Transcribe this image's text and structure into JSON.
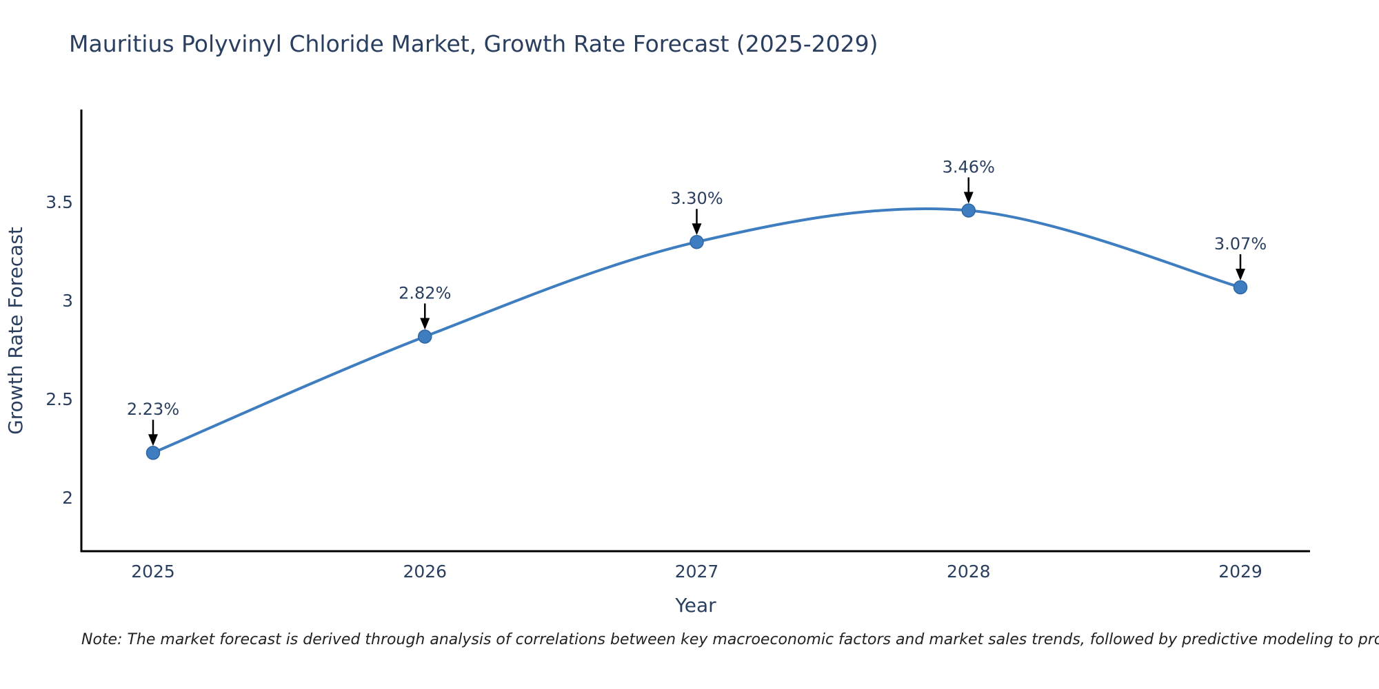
{
  "title": "Mauritius Polyvinyl Chloride Market, Growth Rate Forecast (2025-2029)",
  "note": "Note: The market forecast is derived through analysis of correlations between key macroeconomic factors and market sales trends, followed by predictive modeling to project future sales",
  "colors": {
    "line": "#3E7DBF",
    "marker_fill": "#3E7DBF",
    "marker_edge": "#2F66A3",
    "axis_line": "#000000",
    "arrow": "#000000",
    "title_text": "#2a3f5f",
    "tick_text": "#2a3f5f",
    "note_text": "#222222",
    "background": "#ffffff"
  },
  "chart_data": {
    "type": "line",
    "line_shape": "spline",
    "title": "Mauritius Polyvinyl Chloride Market, Growth Rate Forecast (2025-2029)",
    "xlabel": "Year",
    "ylabel": "Growth Rate Forecast",
    "x": [
      2025,
      2026,
      2027,
      2028,
      2029
    ],
    "values": [
      2.23,
      2.82,
      3.3,
      3.46,
      3.07
    ],
    "point_labels": [
      "2.23%",
      "2.82%",
      "3.30%",
      "3.46%",
      "3.07%"
    ],
    "xticks": [
      "2025",
      "2026",
      "2027",
      "2028",
      "2029"
    ],
    "yticks": [
      "2",
      "2.5",
      "3",
      "3.5"
    ],
    "ytick_values": [
      2,
      2.5,
      3,
      3.5
    ],
    "xlim": [
      2024.74,
      2029.26
    ],
    "ylim": [
      1.73,
      3.97
    ],
    "grid": false,
    "legend": false,
    "annotations_have_arrows": true
  }
}
